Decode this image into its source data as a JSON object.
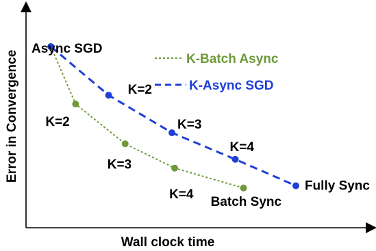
{
  "chart_data": {
    "type": "line",
    "xlabel": "Wall clock time",
    "ylabel": "Error in Convergence",
    "xlim": [
      0,
      100
    ],
    "ylim": [
      0,
      100
    ],
    "grid": false,
    "legend_position": "top-right",
    "series": [
      {
        "name": "K-Batch Async",
        "color": "#6e9a3a",
        "style": "dotted",
        "x": [
          9,
          18,
          36,
          54,
          79
        ],
        "y": [
          82,
          56,
          38,
          27,
          18
        ],
        "point_labels": [
          "",
          "K=2",
          "K=3",
          "K=4",
          "Batch Sync"
        ]
      },
      {
        "name": "K-Async SGD",
        "color": "#1f3fd8",
        "style": "dashed",
        "x": [
          9,
          30,
          53,
          76,
          98
        ],
        "y": [
          82,
          60,
          43,
          31,
          19
        ],
        "point_labels": [
          "",
          "K=2",
          "K=3",
          "K=4",
          "Fully Sync"
        ]
      }
    ],
    "annotations": [
      {
        "text": "Async SGD",
        "x": 9,
        "y": 82
      }
    ]
  }
}
